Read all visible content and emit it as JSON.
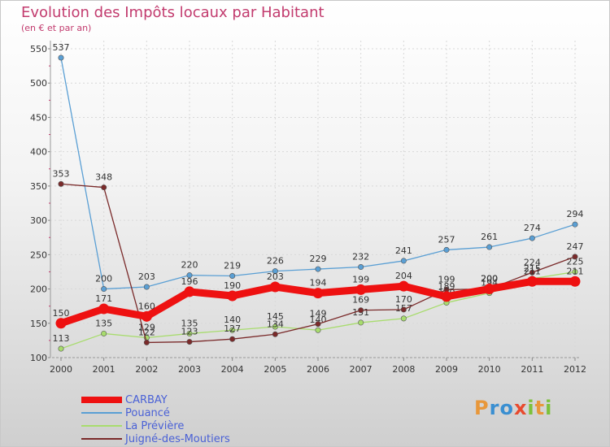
{
  "chart_data": {
    "type": "line",
    "title": "Evolution des Impôts locaux par Habitant",
    "subtitle": "(en € et par an)",
    "x": [
      "2000",
      "2001",
      "2002",
      "2003",
      "2004",
      "2005",
      "2006",
      "2007",
      "2008",
      "2009",
      "2010",
      "2011",
      "2012"
    ],
    "yticks": [
      "100",
      "150",
      "200",
      "250",
      "300",
      "350",
      "400",
      "450",
      "500",
      "550"
    ],
    "ylim": [
      100,
      550
    ],
    "grid": true,
    "legend_position": "bottom-left",
    "series": [
      {
        "name": "Pouancé",
        "color": "#5a9fd4",
        "values": [
          537,
          200,
          203,
          220,
          219,
          226,
          229,
          232,
          241,
          257,
          261,
          274,
          294
        ],
        "labels": [
          "537",
          "200",
          "203",
          "220",
          "219",
          "226",
          "229",
          "232",
          "241",
          "257",
          "261",
          "274",
          "294"
        ]
      },
      {
        "name": "La Prévière",
        "color": "#a8dc6e",
        "values": [
          113,
          135,
          129,
          135,
          140,
          145,
          140,
          151,
          157,
          180,
          194,
          215,
          225
        ],
        "labels": [
          "113",
          "135",
          "129",
          "135",
          "140",
          "145",
          "140",
          "151",
          "157",
          "180",
          "194",
          "215",
          "225"
        ]
      },
      {
        "name": "Juigné-des-Moutiers",
        "color": "#7a2a2a",
        "values": [
          353,
          348,
          122,
          123,
          127,
          134,
          149,
          169,
          170,
          199,
          200,
          224,
          247
        ],
        "labels": [
          "353",
          "348",
          "122",
          "123",
          "127",
          "134",
          "149",
          "169",
          "170",
          "199",
          "200",
          "224",
          "247"
        ]
      },
      {
        "name": "CARBAY",
        "color": "#ee1111",
        "values": [
          150,
          171,
          160,
          196,
          190,
          203,
          194,
          199,
          204,
          189,
          200,
          211,
          211
        ],
        "labels": [
          "150",
          "171",
          "160",
          "196",
          "190",
          "203",
          "194",
          "199",
          "204",
          "189",
          "200",
          "211",
          "211"
        ]
      }
    ]
  },
  "legend": [
    {
      "name": "CARBAY",
      "color": "#ee1111"
    },
    {
      "name": "Pouancé",
      "color": "#5a9fd4"
    },
    {
      "name": "La Prévière",
      "color": "#a8dc6e"
    },
    {
      "name": "Juigné-des-Moutiers",
      "color": "#7a2a2a"
    }
  ],
  "logo": {
    "p": "P",
    "r": "r",
    "o": "o",
    "x": "x",
    "i": "i",
    "t": "t",
    "i2": "i"
  }
}
